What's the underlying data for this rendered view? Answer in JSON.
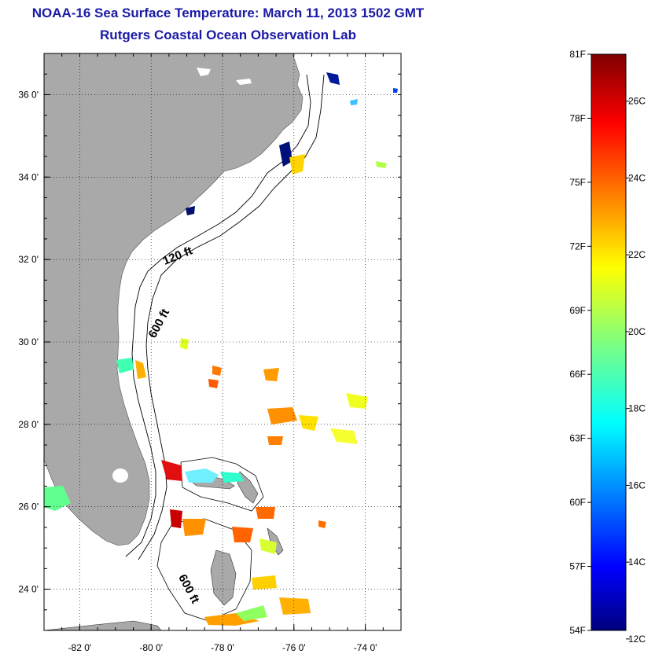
{
  "header": {
    "title": "NOAA-16 Sea Surface Temperature:  March 11, 2013 1502 GMT",
    "subtitle": "Rutgers Coastal Ocean Observation Lab"
  },
  "map": {
    "lon_range": [
      -83,
      -73
    ],
    "lat_range": [
      23,
      37
    ],
    "lon_ticks": [
      -82,
      -80,
      -78,
      -76,
      -74
    ],
    "lat_ticks": [
      24,
      26,
      28,
      30,
      32,
      34,
      36
    ],
    "lon_tick_labels": [
      "-82 0'",
      "-80 0'",
      "-78 0'",
      "-76 0'",
      "-74 0'"
    ],
    "lat_tick_labels": [
      "24 0'",
      "26 0'",
      "28 0'",
      "30 0'",
      "32 0'",
      "34 0'",
      "36 0'"
    ],
    "grid": "dotted",
    "land_color": "#a9a9a9",
    "contours": [
      "120 ft",
      "600 ft",
      "600 ft"
    ]
  },
  "colorbar": {
    "min_c": 12,
    "max_c": 27.2,
    "f_labels": [
      "81F",
      "78F",
      "75F",
      "72F",
      "69F",
      "66F",
      "63F",
      "60F",
      "57F",
      "54F"
    ],
    "c_labels": [
      "26C",
      "24C",
      "22C",
      "20C",
      "18C",
      "16C",
      "14C",
      "12C"
    ],
    "colormap": "jet"
  }
}
